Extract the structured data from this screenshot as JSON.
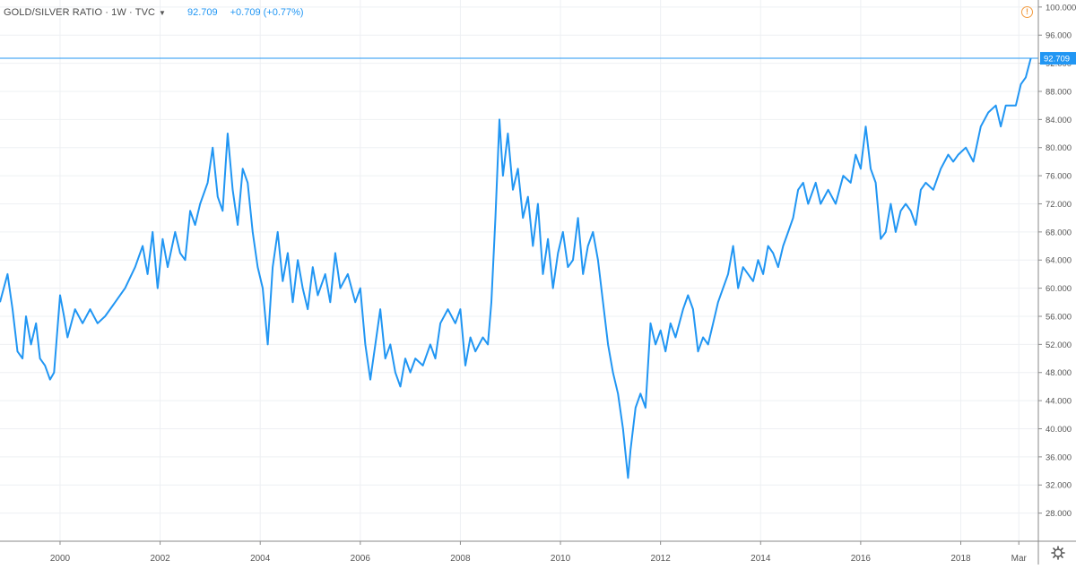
{
  "legend": {
    "symbol": "GOLD/SILVER RATIO · 1W · TVC",
    "last": "92.709",
    "change": "+0.709 (+0.77%)"
  },
  "colors": {
    "line": "#2196f3",
    "grid": "#eef0f3",
    "axis_text": "#555555",
    "warning": "#f29b3f",
    "price_label_bg": "#2196f3"
  },
  "icons": {
    "warning": "warning-icon",
    "settings": "gear-icon"
  },
  "chart_data": {
    "type": "line",
    "title": "GOLD/SILVER RATIO · 1W · TVC",
    "xlabel": "",
    "ylabel": "",
    "xlim": [
      1998.8,
      2019.55
    ],
    "ylim": [
      24,
      101
    ],
    "y_ticks": [
      "28.000",
      "32.000",
      "36.000",
      "40.000",
      "44.000",
      "48.000",
      "52.000",
      "56.000",
      "60.000",
      "64.000",
      "68.000",
      "72.000",
      "76.000",
      "80.000",
      "84.000",
      "88.000",
      "92.000",
      "96.000",
      "100.000"
    ],
    "x_ticks": [
      {
        "x": 2000,
        "label": "2000"
      },
      {
        "x": 2002,
        "label": "2002"
      },
      {
        "x": 2004,
        "label": "2004"
      },
      {
        "x": 2006,
        "label": "2006"
      },
      {
        "x": 2008,
        "label": "2008"
      },
      {
        "x": 2010,
        "label": "2010"
      },
      {
        "x": 2012,
        "label": "2012"
      },
      {
        "x": 2014,
        "label": "2014"
      },
      {
        "x": 2016,
        "label": "2016"
      },
      {
        "x": 2018,
        "label": "2018"
      },
      {
        "x": 2019.16,
        "label": "Mar"
      }
    ],
    "last_price": 92.709,
    "last_price_label": "92.709",
    "grid": true,
    "series": [
      {
        "points": [
          [
            1998.8,
            58
          ],
          [
            1998.95,
            62
          ],
          [
            1999.05,
            57
          ],
          [
            1999.15,
            51
          ],
          [
            1999.25,
            50
          ],
          [
            1999.32,
            56
          ],
          [
            1999.42,
            52
          ],
          [
            1999.52,
            55
          ],
          [
            1999.6,
            50
          ],
          [
            1999.7,
            49
          ],
          [
            1999.8,
            47
          ],
          [
            1999.88,
            48
          ],
          [
            2000.0,
            59
          ],
          [
            2000.08,
            56
          ],
          [
            2000.15,
            53
          ],
          [
            2000.3,
            57
          ],
          [
            2000.45,
            55
          ],
          [
            2000.6,
            57
          ],
          [
            2000.75,
            55
          ],
          [
            2000.9,
            56
          ],
          [
            2001.1,
            58
          ],
          [
            2001.3,
            60
          ],
          [
            2001.5,
            63
          ],
          [
            2001.65,
            66
          ],
          [
            2001.75,
            62
          ],
          [
            2001.85,
            68
          ],
          [
            2001.95,
            60
          ],
          [
            2002.05,
            67
          ],
          [
            2002.15,
            63
          ],
          [
            2002.3,
            68
          ],
          [
            2002.4,
            65
          ],
          [
            2002.5,
            64
          ],
          [
            2002.6,
            71
          ],
          [
            2002.7,
            69
          ],
          [
            2002.8,
            72
          ],
          [
            2002.95,
            75
          ],
          [
            2003.05,
            80
          ],
          [
            2003.15,
            73
          ],
          [
            2003.25,
            71
          ],
          [
            2003.35,
            82
          ],
          [
            2003.45,
            74
          ],
          [
            2003.55,
            69
          ],
          [
            2003.65,
            77
          ],
          [
            2003.75,
            75
          ],
          [
            2003.85,
            68
          ],
          [
            2003.95,
            63
          ],
          [
            2004.05,
            60
          ],
          [
            2004.15,
            52
          ],
          [
            2004.25,
            63
          ],
          [
            2004.35,
            68
          ],
          [
            2004.45,
            61
          ],
          [
            2004.55,
            65
          ],
          [
            2004.65,
            58
          ],
          [
            2004.75,
            64
          ],
          [
            2004.85,
            60
          ],
          [
            2004.95,
            57
          ],
          [
            2005.05,
            63
          ],
          [
            2005.15,
            59
          ],
          [
            2005.3,
            62
          ],
          [
            2005.4,
            58
          ],
          [
            2005.5,
            65
          ],
          [
            2005.6,
            60
          ],
          [
            2005.75,
            62
          ],
          [
            2005.9,
            58
          ],
          [
            2006.0,
            60
          ],
          [
            2006.1,
            52
          ],
          [
            2006.2,
            47
          ],
          [
            2006.3,
            52
          ],
          [
            2006.4,
            57
          ],
          [
            2006.5,
            50
          ],
          [
            2006.6,
            52
          ],
          [
            2006.7,
            48
          ],
          [
            2006.8,
            46
          ],
          [
            2006.9,
            50
          ],
          [
            2007.0,
            48
          ],
          [
            2007.1,
            50
          ],
          [
            2007.25,
            49
          ],
          [
            2007.4,
            52
          ],
          [
            2007.5,
            50
          ],
          [
            2007.6,
            55
          ],
          [
            2007.75,
            57
          ],
          [
            2007.9,
            55
          ],
          [
            2008.0,
            57
          ],
          [
            2008.1,
            49
          ],
          [
            2008.2,
            53
          ],
          [
            2008.3,
            51
          ],
          [
            2008.45,
            53
          ],
          [
            2008.55,
            52
          ],
          [
            2008.62,
            58
          ],
          [
            2008.7,
            70
          ],
          [
            2008.78,
            84
          ],
          [
            2008.85,
            76
          ],
          [
            2008.95,
            82
          ],
          [
            2009.05,
            74
          ],
          [
            2009.15,
            77
          ],
          [
            2009.25,
            70
          ],
          [
            2009.35,
            73
          ],
          [
            2009.45,
            66
          ],
          [
            2009.55,
            72
          ],
          [
            2009.65,
            62
          ],
          [
            2009.75,
            67
          ],
          [
            2009.85,
            60
          ],
          [
            2009.95,
            65
          ],
          [
            2010.05,
            68
          ],
          [
            2010.15,
            63
          ],
          [
            2010.25,
            64
          ],
          [
            2010.35,
            70
          ],
          [
            2010.45,
            62
          ],
          [
            2010.55,
            66
          ],
          [
            2010.65,
            68
          ],
          [
            2010.75,
            64
          ],
          [
            2010.85,
            58
          ],
          [
            2010.95,
            52
          ],
          [
            2011.05,
            48
          ],
          [
            2011.15,
            45
          ],
          [
            2011.25,
            40
          ],
          [
            2011.35,
            33
          ],
          [
            2011.4,
            37
          ],
          [
            2011.5,
            43
          ],
          [
            2011.6,
            45
          ],
          [
            2011.7,
            43
          ],
          [
            2011.8,
            55
          ],
          [
            2011.9,
            52
          ],
          [
            2012.0,
            54
          ],
          [
            2012.1,
            51
          ],
          [
            2012.2,
            55
          ],
          [
            2012.3,
            53
          ],
          [
            2012.45,
            57
          ],
          [
            2012.55,
            59
          ],
          [
            2012.65,
            57
          ],
          [
            2012.75,
            51
          ],
          [
            2012.85,
            53
          ],
          [
            2012.95,
            52
          ],
          [
            2013.05,
            55
          ],
          [
            2013.15,
            58
          ],
          [
            2013.25,
            60
          ],
          [
            2013.35,
            62
          ],
          [
            2013.45,
            66
          ],
          [
            2013.55,
            60
          ],
          [
            2013.65,
            63
          ],
          [
            2013.75,
            62
          ],
          [
            2013.85,
            61
          ],
          [
            2013.95,
            64
          ],
          [
            2014.05,
            62
          ],
          [
            2014.15,
            66
          ],
          [
            2014.25,
            65
          ],
          [
            2014.35,
            63
          ],
          [
            2014.45,
            66
          ],
          [
            2014.55,
            68
          ],
          [
            2014.65,
            70
          ],
          [
            2014.75,
            74
          ],
          [
            2014.85,
            75
          ],
          [
            2014.95,
            72
          ],
          [
            2015.1,
            75
          ],
          [
            2015.2,
            72
          ],
          [
            2015.35,
            74
          ],
          [
            2015.5,
            72
          ],
          [
            2015.65,
            76
          ],
          [
            2015.8,
            75
          ],
          [
            2015.9,
            79
          ],
          [
            2016.0,
            77
          ],
          [
            2016.1,
            83
          ],
          [
            2016.2,
            77
          ],
          [
            2016.3,
            75
          ],
          [
            2016.4,
            67
          ],
          [
            2016.5,
            68
          ],
          [
            2016.6,
            72
          ],
          [
            2016.7,
            68
          ],
          [
            2016.8,
            71
          ],
          [
            2016.9,
            72
          ],
          [
            2017.0,
            71
          ],
          [
            2017.1,
            69
          ],
          [
            2017.2,
            74
          ],
          [
            2017.3,
            75
          ],
          [
            2017.45,
            74
          ],
          [
            2017.6,
            77
          ],
          [
            2017.75,
            79
          ],
          [
            2017.85,
            78
          ],
          [
            2017.95,
            79
          ],
          [
            2018.1,
            80
          ],
          [
            2018.25,
            78
          ],
          [
            2018.4,
            83
          ],
          [
            2018.55,
            85
          ],
          [
            2018.7,
            86
          ],
          [
            2018.8,
            83
          ],
          [
            2018.9,
            86
          ],
          [
            2019.0,
            86
          ],
          [
            2019.1,
            86
          ],
          [
            2019.2,
            89
          ],
          [
            2019.3,
            90
          ],
          [
            2019.4,
            92.709
          ]
        ]
      }
    ]
  }
}
